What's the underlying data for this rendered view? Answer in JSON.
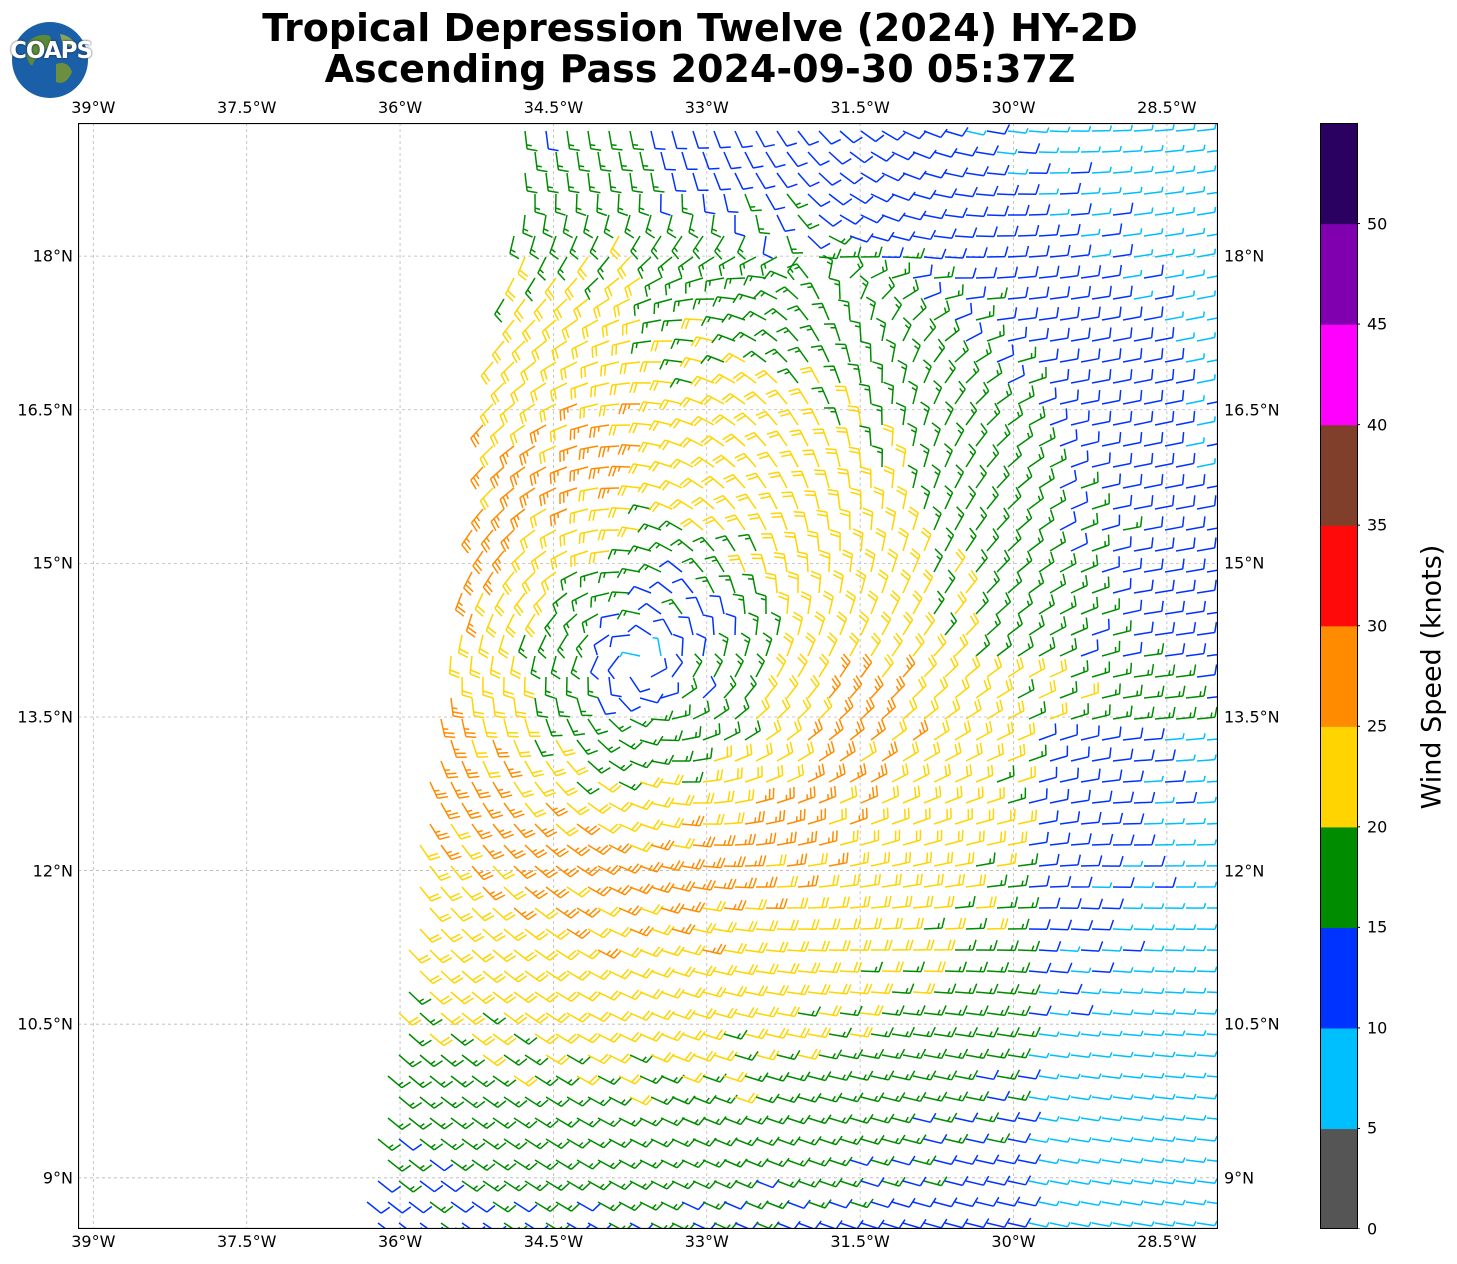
{
  "title_line1": "Tropical Depression Twelve (2024) HY-2D",
  "title_line2": "Ascending Pass 2024-09-30 05:37Z",
  "logo_text": "COAPS",
  "lon_ticks": [
    {
      "lon": -39.0,
      "label": "39°W"
    },
    {
      "lon": -37.5,
      "label": "37.5°W"
    },
    {
      "lon": -36.0,
      "label": "36°W"
    },
    {
      "lon": -34.5,
      "label": "34.5°W"
    },
    {
      "lon": -33.0,
      "label": "33°W"
    },
    {
      "lon": -31.5,
      "label": "31.5°W"
    },
    {
      "lon": -30.0,
      "label": "30°W"
    },
    {
      "lon": -28.5,
      "label": "28.5°W"
    }
  ],
  "lat_ticks": [
    {
      "lat": 18.0,
      "label": "18°N"
    },
    {
      "lat": 16.5,
      "label": "16.5°N"
    },
    {
      "lat": 15.0,
      "label": "15°N"
    },
    {
      "lat": 13.5,
      "label": "13.5°N"
    },
    {
      "lat": 12.0,
      "label": "12°N"
    },
    {
      "lat": 10.5,
      "label": "10.5°N"
    },
    {
      "lat": 9.0,
      "label": "9°N"
    }
  ],
  "colorbar": {
    "label": "Wind Speed (knots)",
    "ticks": [
      "0",
      "5",
      "10",
      "15",
      "20",
      "25",
      "30",
      "35",
      "40",
      "45",
      "50"
    ],
    "bins": [
      {
        "min": 0,
        "max": 5,
        "color": "#555555"
      },
      {
        "min": 5,
        "max": 10,
        "color": "#00bfff"
      },
      {
        "min": 10,
        "max": 15,
        "color": "#0033ff"
      },
      {
        "min": 15,
        "max": 20,
        "color": "#008c00"
      },
      {
        "min": 20,
        "max": 25,
        "color": "#ffd400"
      },
      {
        "min": 25,
        "max": 30,
        "color": "#ff8c00"
      },
      {
        "min": 30,
        "max": 35,
        "color": "#ff0a0a"
      },
      {
        "min": 35,
        "max": 40,
        "color": "#7f3f2a"
      },
      {
        "min": 40,
        "max": 45,
        "color": "#ff00ff"
      },
      {
        "min": 45,
        "max": 50,
        "color": "#8000b0"
      },
      {
        "min": 50,
        "max": 55,
        "color": "#2a0060"
      }
    ]
  },
  "chart_data": {
    "type": "wind-barb map",
    "domain": {
      "lon": [
        -39.15,
        -28.0
      ],
      "lat": [
        8.5,
        19.3
      ]
    },
    "center": {
      "lon": -33.65,
      "lat": 14.0
    },
    "grid": true
  }
}
